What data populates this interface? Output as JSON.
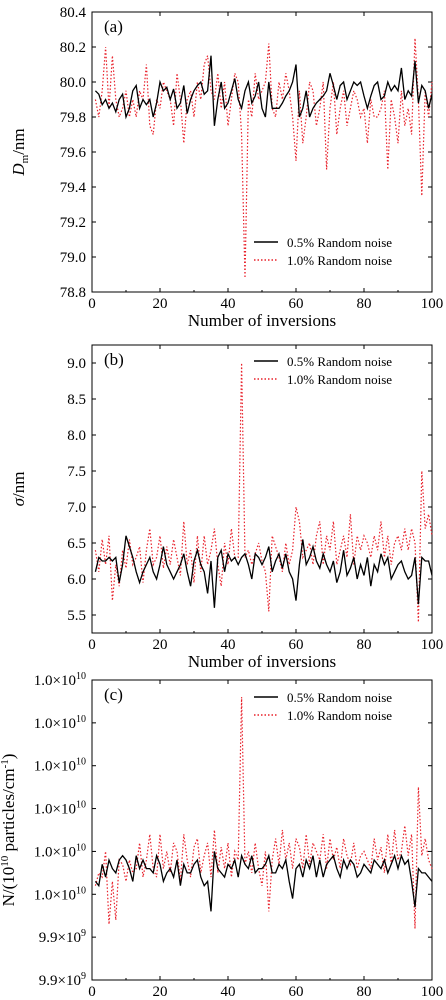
{
  "chart_data": [
    {
      "type": "line",
      "panel_label": "(a)",
      "xlabel": "Number of inversions",
      "ylabel_main": "D",
      "ylabel_sub": "m",
      "ylabel_tail": "/nm",
      "xlim": [
        0,
        100
      ],
      "ylim": [
        78.8,
        80.4
      ],
      "xticks": [
        0,
        20,
        40,
        60,
        80,
        100
      ],
      "xtick_labels": [
        "0",
        "20",
        "40",
        "60",
        "80",
        "100"
      ],
      "yticks": [
        78.8,
        79.0,
        79.2,
        79.4,
        79.6,
        79.8,
        80.0,
        80.2,
        80.4
      ],
      "ytick_labels": [
        "78.8",
        "79.0",
        "79.2",
        "79.4",
        "79.6",
        "79.8",
        "80.0",
        "80.2",
        "80.4"
      ],
      "legend_position": "lower-right",
      "x": [
        1,
        2,
        3,
        4,
        5,
        6,
        7,
        8,
        9,
        10,
        11,
        12,
        13,
        14,
        15,
        16,
        17,
        18,
        19,
        20,
        21,
        22,
        23,
        24,
        25,
        26,
        27,
        28,
        29,
        30,
        31,
        32,
        33,
        34,
        35,
        36,
        37,
        38,
        39,
        40,
        41,
        42,
        43,
        44,
        45,
        46,
        47,
        48,
        49,
        50,
        51,
        52,
        53,
        54,
        55,
        56,
        57,
        58,
        59,
        60,
        61,
        62,
        63,
        64,
        65,
        66,
        67,
        68,
        69,
        70,
        71,
        72,
        73,
        74,
        75,
        76,
        77,
        78,
        79,
        80,
        81,
        82,
        83,
        84,
        85,
        86,
        87,
        88,
        89,
        90,
        91,
        92,
        93,
        94,
        95,
        96,
        97,
        98,
        99,
        100
      ],
      "series": [
        {
          "name": "0.5% Random noise",
          "color": "#000000",
          "dash": "solid",
          "values": [
            79.95,
            79.93,
            79.87,
            79.9,
            79.85,
            79.88,
            79.83,
            79.9,
            79.93,
            79.8,
            79.85,
            79.95,
            79.98,
            79.85,
            79.9,
            79.87,
            79.9,
            79.8,
            79.88,
            80.0,
            79.95,
            79.97,
            79.9,
            79.96,
            79.85,
            79.88,
            79.98,
            79.82,
            79.9,
            79.95,
            79.98,
            80.0,
            79.93,
            79.95,
            80.15,
            79.75,
            79.9,
            80.0,
            79.85,
            79.88,
            79.95,
            80.02,
            79.9,
            79.85,
            79.95,
            80.0,
            79.88,
            79.92,
            80.0,
            79.85,
            79.8,
            80.0,
            79.85,
            79.85,
            79.85,
            79.88,
            79.92,
            79.95,
            80.0,
            80.1,
            79.8,
            79.85,
            79.95,
            79.8,
            79.85,
            79.88,
            79.9,
            79.92,
            79.95,
            80.05,
            79.98,
            79.9,
            79.98,
            80.0,
            79.9,
            79.95,
            80.0,
            79.98,
            80.0,
            79.92,
            79.85,
            79.92,
            79.98,
            80.0,
            79.9,
            79.92,
            80.0,
            79.95,
            79.98,
            79.95,
            80.08,
            79.9,
            79.95,
            79.92,
            80.12,
            79.88,
            79.98,
            79.95,
            79.85,
            79.93
          ]
        },
        {
          "name": "1.0% Random noise",
          "color": "#e8202a",
          "dash": "dotted",
          "values": [
            79.9,
            79.8,
            79.95,
            80.2,
            79.85,
            80.15,
            79.9,
            79.8,
            79.85,
            79.95,
            79.8,
            79.9,
            79.8,
            79.95,
            79.9,
            80.1,
            79.75,
            79.7,
            79.9,
            79.85,
            80.0,
            79.95,
            79.9,
            79.75,
            80.05,
            79.9,
            79.65,
            79.9,
            79.95,
            79.8,
            80.0,
            79.9,
            80.1,
            80.15,
            79.95,
            79.9,
            80.05,
            79.85,
            80.0,
            79.75,
            79.9,
            80.05,
            80.0,
            79.7,
            78.88,
            79.9,
            79.8,
            80.05,
            79.9,
            79.95,
            80.0,
            80.22,
            79.85,
            79.8,
            80.0,
            79.9,
            80.05,
            79.95,
            79.8,
            79.55,
            79.95,
            79.65,
            79.8,
            80.0,
            79.95,
            79.75,
            79.85,
            80.0,
            79.5,
            79.85,
            80.0,
            79.7,
            79.85,
            79.95,
            79.75,
            79.85,
            79.95,
            79.9,
            79.8,
            79.85,
            79.65,
            79.9,
            79.8,
            79.8,
            79.85,
            79.95,
            79.5,
            79.9,
            79.8,
            79.65,
            79.95,
            79.75,
            79.85,
            79.7,
            80.25,
            79.9,
            79.35,
            79.95,
            79.8,
            80.0
          ]
        }
      ]
    },
    {
      "type": "line",
      "panel_label": "(b)",
      "xlabel": "Number of inversions",
      "ylabel_main": "σ",
      "ylabel_tail": "/nm",
      "xlim": [
        0,
        100
      ],
      "ylim": [
        5.25,
        9.25
      ],
      "xticks": [
        0,
        20,
        40,
        60,
        80,
        100
      ],
      "xtick_labels": [
        "0",
        "20",
        "40",
        "60",
        "80",
        "100"
      ],
      "yticks": [
        5.5,
        6.0,
        6.5,
        7.0,
        7.5,
        8.0,
        8.5,
        9.0
      ],
      "ytick_labels": [
        "5.5",
        "6.0",
        "6.5",
        "7.0",
        "7.5",
        "8.0",
        "8.5",
        "9.0"
      ],
      "legend_position": "top-right",
      "x": [
        1,
        2,
        3,
        4,
        5,
        6,
        7,
        8,
        9,
        10,
        11,
        12,
        13,
        14,
        15,
        16,
        17,
        18,
        19,
        20,
        21,
        22,
        23,
        24,
        25,
        26,
        27,
        28,
        29,
        30,
        31,
        32,
        33,
        34,
        35,
        36,
        37,
        38,
        39,
        40,
        41,
        42,
        43,
        44,
        45,
        46,
        47,
        48,
        49,
        50,
        51,
        52,
        53,
        54,
        55,
        56,
        57,
        58,
        59,
        60,
        61,
        62,
        63,
        64,
        65,
        66,
        67,
        68,
        69,
        70,
        71,
        72,
        73,
        74,
        75,
        76,
        77,
        78,
        79,
        80,
        81,
        82,
        83,
        84,
        85,
        86,
        87,
        88,
        89,
        90,
        91,
        92,
        93,
        94,
        95,
        96,
        97,
        98,
        99,
        100
      ],
      "series": [
        {
          "name": "0.5% Random noise",
          "color": "#000000",
          "dash": "solid",
          "values": [
            6.1,
            6.3,
            6.25,
            6.25,
            6.3,
            6.25,
            6.3,
            5.95,
            6.2,
            6.6,
            6.45,
            6.3,
            6.1,
            5.95,
            6.1,
            6.2,
            6.3,
            6.1,
            6.0,
            6.2,
            6.45,
            6.2,
            6.1,
            6.0,
            6.1,
            6.2,
            6.35,
            6.1,
            5.9,
            6.25,
            6.4,
            6.2,
            6.1,
            5.8,
            6.25,
            5.6,
            6.3,
            6.4,
            6.1,
            6.35,
            6.25,
            6.3,
            6.2,
            6.3,
            6.35,
            6.2,
            6.0,
            6.35,
            6.3,
            6.2,
            6.3,
            6.45,
            6.1,
            6.25,
            6.35,
            6.15,
            6.35,
            6.1,
            6.0,
            5.7,
            6.2,
            6.55,
            6.2,
            6.3,
            6.45,
            6.25,
            6.15,
            6.35,
            6.2,
            6.1,
            6.25,
            5.95,
            6.1,
            6.4,
            6.05,
            6.15,
            6.3,
            6.0,
            6.2,
            6.05,
            6.3,
            5.9,
            6.2,
            6.1,
            6.35,
            6.2,
            6.3,
            6.0,
            6.1,
            6.2,
            6.25,
            6.1,
            6.0,
            6.05,
            6.3,
            5.65,
            6.3,
            6.25,
            6.25,
            6.05
          ]
        },
        {
          "name": "1.0% Random noise",
          "color": "#e8202a",
          "dash": "dotted",
          "values": [
            6.4,
            6.1,
            6.55,
            6.2,
            6.6,
            5.7,
            6.2,
            5.9,
            6.4,
            6.15,
            6.55,
            6.2,
            6.3,
            6.45,
            5.95,
            6.4,
            6.7,
            6.2,
            6.3,
            6.6,
            6.15,
            6.45,
            6.2,
            6.55,
            6.3,
            6.05,
            6.8,
            6.2,
            6.4,
            5.95,
            6.6,
            6.1,
            6.6,
            6.2,
            6.4,
            6.7,
            6.2,
            5.9,
            6.5,
            6.2,
            6.7,
            6.3,
            6.3,
            9.0,
            6.3,
            6.4,
            6.2,
            6.35,
            6.5,
            6.25,
            6.1,
            5.55,
            6.6,
            6.45,
            6.3,
            6.1,
            6.5,
            6.2,
            6.4,
            7.0,
            6.8,
            6.3,
            6.4,
            6.5,
            6.2,
            6.6,
            6.8,
            6.2,
            6.6,
            6.4,
            6.8,
            6.2,
            6.4,
            6.6,
            6.3,
            6.9,
            6.2,
            6.6,
            6.4,
            6.6,
            6.5,
            6.3,
            6.6,
            6.4,
            6.8,
            6.3,
            6.6,
            6.2,
            6.5,
            6.6,
            6.4,
            6.7,
            6.4,
            6.7,
            6.5,
            5.4,
            7.5,
            6.7,
            6.9,
            6.6
          ]
        }
      ]
    },
    {
      "type": "line",
      "panel_label": "(c)",
      "xlabel": "Number of inversions",
      "ylabel_main": "N/(10",
      "ylabel_sup": "10",
      "ylabel_mid": " particles/cm",
      "ylabel_sup2": "-1",
      "ylabel_tail": ")",
      "xlim": [
        0,
        100
      ],
      "ylim": [
        0,
        7
      ],
      "xticks": [
        0,
        20,
        40,
        60,
        80,
        100
      ],
      "xtick_labels": [
        "0",
        "20",
        "40",
        "60",
        "80",
        "100"
      ],
      "yticks": [
        0,
        1,
        2,
        3,
        4,
        5,
        6,
        7
      ],
      "ytick_base": [
        "9.9",
        "9.9",
        "1.0",
        "1.0",
        "1.0",
        "1.0",
        "1.0",
        "1.0"
      ],
      "ytick_exp": [
        "9",
        "9",
        "10",
        "10",
        "10",
        "10",
        "10",
        "10"
      ],
      "legend_position": "top-right",
      "x": [
        1,
        2,
        3,
        4,
        5,
        6,
        7,
        8,
        9,
        10,
        11,
        12,
        13,
        14,
        15,
        16,
        17,
        18,
        19,
        20,
        21,
        22,
        23,
        24,
        25,
        26,
        27,
        28,
        29,
        30,
        31,
        32,
        33,
        34,
        35,
        36,
        37,
        38,
        39,
        40,
        41,
        42,
        43,
        44,
        45,
        46,
        47,
        48,
        49,
        50,
        51,
        52,
        53,
        54,
        55,
        56,
        57,
        58,
        59,
        60,
        61,
        62,
        63,
        64,
        65,
        66,
        67,
        68,
        69,
        70,
        71,
        72,
        73,
        74,
        75,
        76,
        77,
        78,
        79,
        80,
        81,
        82,
        83,
        84,
        85,
        86,
        87,
        88,
        89,
        90,
        91,
        92,
        93,
        94,
        95,
        96,
        97,
        98,
        99,
        100
      ],
      "series": [
        {
          "name": "0.5% Random noise",
          "color": "#000000",
          "dash": "solid",
          "values": [
            2.3,
            2.2,
            2.7,
            2.4,
            2.8,
            2.6,
            2.5,
            2.8,
            2.9,
            2.8,
            2.6,
            2.3,
            2.9,
            2.6,
            2.8,
            2.6,
            2.6,
            2.5,
            2.9,
            2.7,
            2.3,
            2.5,
            2.6,
            2.4,
            2.8,
            2.2,
            2.7,
            2.5,
            2.5,
            2.7,
            2.8,
            2.4,
            2.2,
            2.3,
            1.6,
            3.0,
            2.6,
            2.5,
            2.4,
            2.7,
            2.6,
            2.8,
            2.4,
            2.9,
            2.7,
            2.6,
            2.9,
            2.5,
            2.6,
            2.6,
            2.7,
            2.9,
            2.5,
            2.5,
            2.7,
            2.6,
            2.8,
            2.3,
            1.9,
            2.6,
            2.7,
            2.4,
            2.8,
            2.6,
            2.9,
            2.4,
            2.8,
            2.4,
            2.7,
            2.8,
            2.9,
            2.6,
            2.4,
            2.8,
            2.6,
            2.8,
            2.7,
            2.4,
            2.5,
            2.7,
            2.6,
            2.5,
            2.8,
            2.7,
            2.6,
            2.8,
            2.5,
            2.7,
            2.9,
            2.6,
            2.9,
            2.7,
            2.8,
            2.3,
            1.7,
            2.6,
            2.5,
            2.5,
            2.4,
            2.3
          ]
        },
        {
          "name": "1.0% Random noise",
          "color": "#e8202a",
          "dash": "dotted",
          "values": [
            2.2,
            2.5,
            2.4,
            3.0,
            1.3,
            2.3,
            1.4,
            2.8,
            2.7,
            2.3,
            2.8,
            2.5,
            2.6,
            3.2,
            2.4,
            2.8,
            3.4,
            2.6,
            2.4,
            3.4,
            2.6,
            3.0,
            2.5,
            3.2,
            3.0,
            2.3,
            3.4,
            2.8,
            2.4,
            3.1,
            3.3,
            2.5,
            2.9,
            3.2,
            2.4,
            3.5,
            2.5,
            3.1,
            2.6,
            3.2,
            2.4,
            3.0,
            2.8,
            6.6,
            2.7,
            3.0,
            2.5,
            3.2,
            2.6,
            2.2,
            3.0,
            1.6,
            2.8,
            3.3,
            2.7,
            3.5,
            2.8,
            3.2,
            2.6,
            3.3,
            3.1,
            2.6,
            3.4,
            2.7,
            3.2,
            3.0,
            2.8,
            3.4,
            2.6,
            3.3,
            2.8,
            3.1,
            2.6,
            3.3,
            2.9,
            2.7,
            3.2,
            2.6,
            2.9,
            3.0,
            2.8,
            2.6,
            3.3,
            2.8,
            3.1,
            2.5,
            3.4,
            2.7,
            3.5,
            2.8,
            3.0,
            3.6,
            2.9,
            3.4,
            1.2,
            4.5,
            2.9,
            3.3,
            2.8,
            2.6
          ]
        }
      ]
    }
  ]
}
